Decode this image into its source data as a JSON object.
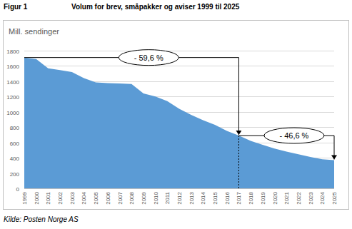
{
  "chart_data": {
    "type": "area",
    "figure_label": "Figur 1",
    "title": "Volum for brev, småpakker og aviser 1999 til 2025",
    "y_label": "Mill. sendinger",
    "source": "Kilde: Posten Norge AS",
    "categories": [
      "1999",
      "2000",
      "2001",
      "2002",
      "2003",
      "2004",
      "2005",
      "2006",
      "2007",
      "2008",
      "2009",
      "2010",
      "2011",
      "2012",
      "2013",
      "2014",
      "2015",
      "2016",
      "2017",
      "2018",
      "2019",
      "2020",
      "2021",
      "2022",
      "2023",
      "2024",
      "2025"
    ],
    "values": [
      1710,
      1690,
      1570,
      1545,
      1520,
      1440,
      1385,
      1375,
      1370,
      1365,
      1240,
      1200,
      1140,
      1040,
      960,
      890,
      830,
      750,
      690,
      620,
      570,
      520,
      480,
      445,
      410,
      380,
      368
    ],
    "color": "#5b9bd5",
    "ylim": [
      0,
      1800
    ],
    "yticks": [
      0,
      200,
      400,
      600,
      800,
      1000,
      1200,
      1400,
      1600,
      1800
    ],
    "grid": true,
    "annotations": [
      {
        "text": "- 59,6 %",
        "from": "1999",
        "to": "2017"
      },
      {
        "text": "- 46,6 %",
        "from": "2017",
        "to": "2025"
      }
    ]
  }
}
